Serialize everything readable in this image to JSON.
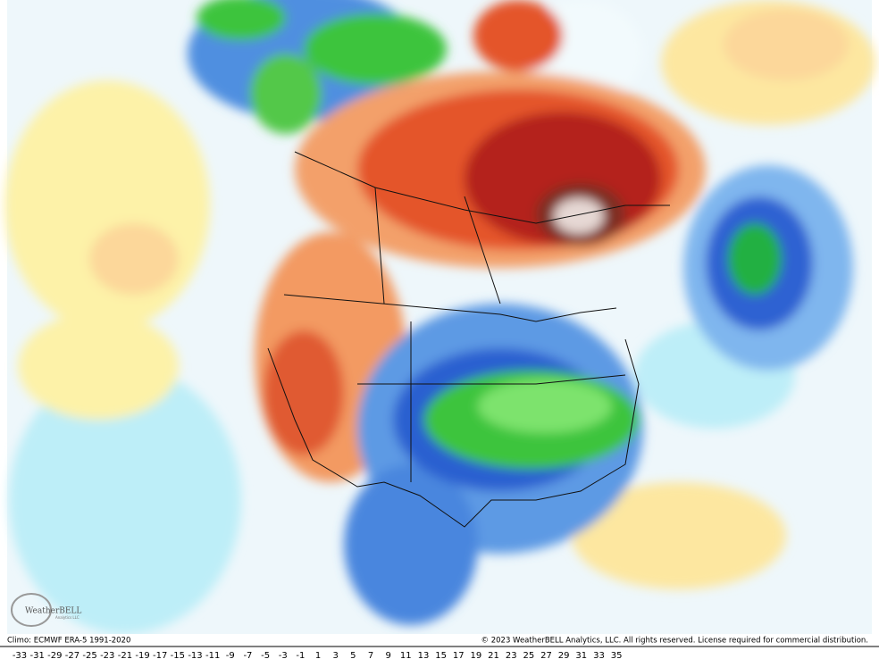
{
  "logo": {
    "name": "WeatherBELL",
    "tagline": "Analytics LLC"
  },
  "footer": {
    "climo": "Climo: ECMWF ERA-5 1991-2020",
    "copyright": "© 2023 WeatherBELL Analytics, LLC. All rights reserved. License required for commercial distribution."
  },
  "scale": {
    "labels": [
      -33,
      -31,
      -29,
      -27,
      -25,
      -23,
      -21,
      -19,
      -17,
      -15,
      -13,
      -11,
      -9,
      -7,
      -5,
      -3,
      -1,
      1,
      3,
      5,
      7,
      9,
      11,
      13,
      15,
      17,
      19,
      21,
      23,
      25,
      27,
      29,
      31,
      33,
      35
    ]
  }
}
